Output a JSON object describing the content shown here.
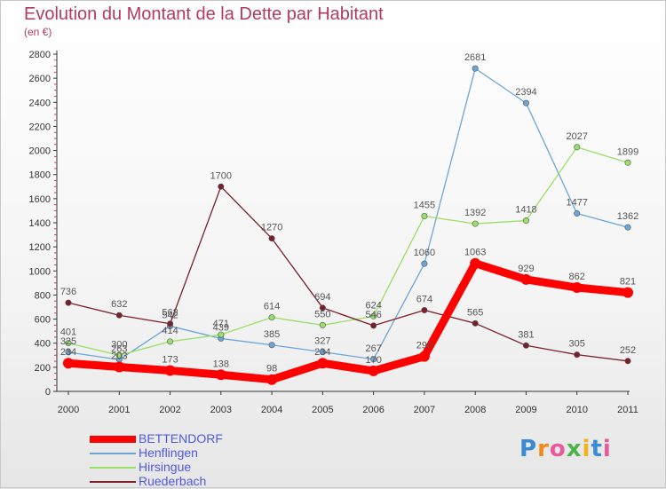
{
  "title": "Evolution du Montant de la Dette par Habitant",
  "subtitle": "(en €)",
  "logo": "Proxiti",
  "chart_data": {
    "type": "line",
    "title": "Evolution du Montant de la Dette par Habitant",
    "subtitle": "(en €)",
    "x": [
      "2000",
      "2001",
      "2002",
      "2003",
      "2004",
      "2005",
      "2006",
      "2007",
      "2008",
      "2009",
      "2010",
      "2011"
    ],
    "ylim": [
      0,
      2800
    ],
    "yticks": [
      0,
      200,
      400,
      600,
      800,
      1000,
      1200,
      1400,
      1600,
      1800,
      2000,
      2200,
      2400,
      2600,
      2800
    ],
    "grid": false,
    "legend": "bottom-left",
    "series": [
      {
        "name": "BETTENDORF",
        "color": "#ff0000",
        "values": [
          234,
          203,
          173,
          138,
          98,
          234,
          170,
          290,
          1063,
          929,
          862,
          821
        ]
      },
      {
        "name": "Henflingen",
        "color": "#6da5d6",
        "values": [
          325,
          263,
          542,
          439,
          385,
          327,
          267,
          1060,
          2681,
          2394,
          1477,
          1362
        ]
      },
      {
        "name": "Hirsingue",
        "color": "#99e066",
        "values": [
          401,
          300,
          414,
          471,
          614,
          550,
          624,
          1455,
          1392,
          1418,
          2027,
          1899
        ]
      },
      {
        "name": "Ruederbach",
        "color": "#7a1f2a",
        "values": [
          736,
          632,
          562,
          1700,
          1270,
          694,
          546,
          674,
          565,
          381,
          305,
          252
        ]
      }
    ]
  }
}
